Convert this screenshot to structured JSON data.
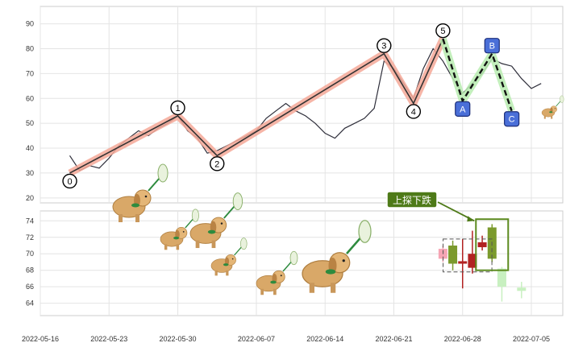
{
  "chart_data": [
    {
      "type": "line",
      "panel": "top",
      "title": "",
      "xlabel": "",
      "ylabel": "",
      "ylim": [
        18,
        97
      ],
      "yticks": [
        20,
        30,
        40,
        50,
        60,
        70,
        80,
        90
      ],
      "grid": true,
      "price_series": {
        "x": [
          "2022-05-19",
          "2022-05-20",
          "2022-05-21",
          "2022-05-22",
          "2022-05-23",
          "2022-05-24",
          "2022-05-25",
          "2022-05-26",
          "2022-05-27",
          "2022-05-28",
          "2022-05-29",
          "2022-05-30",
          "2022-05-31",
          "2022-06-01",
          "2022-06-02",
          "2022-06-03",
          "2022-06-04",
          "2022-06-05",
          "2022-06-06",
          "2022-06-07",
          "2022-06-08",
          "2022-06-09",
          "2022-06-10",
          "2022-06-11",
          "2022-06-12",
          "2022-06-13",
          "2022-06-14",
          "2022-06-15",
          "2022-06-16",
          "2022-06-17",
          "2022-06-18",
          "2022-06-19",
          "2022-06-20",
          "2022-06-21",
          "2022-06-22",
          "2022-06-23",
          "2022-06-24",
          "2022-06-25",
          "2022-06-26",
          "2022-06-27",
          "2022-06-28",
          "2022-06-29",
          "2022-06-30",
          "2022-07-01",
          "2022-07-02",
          "2022-07-03",
          "2022-07-04",
          "2022-07-05",
          "2022-07-06"
        ],
        "values": [
          37,
          31,
          33,
          32,
          36,
          41,
          44,
          47,
          45,
          48,
          50,
          53,
          47,
          44,
          38,
          39,
          41,
          43,
          45,
          47,
          52,
          55,
          58,
          55,
          53,
          50,
          46,
          44,
          48,
          50,
          52,
          56,
          75,
          72,
          66,
          60,
          72,
          80,
          75,
          68,
          62,
          66,
          70,
          76,
          74,
          73,
          68,
          64,
          66
        ]
      },
      "wave_points": [
        {
          "label": "0",
          "x": "2022-05-19",
          "y": 30
        },
        {
          "label": "1",
          "x": "2022-05-30",
          "y": 53
        },
        {
          "label": "2",
          "x": "2022-06-03",
          "y": 37
        },
        {
          "label": "3",
          "x": "2022-06-20",
          "y": 78
        },
        {
          "label": "4",
          "x": "2022-06-23",
          "y": 58
        },
        {
          "label": "5",
          "x": "2022-06-26",
          "y": 84
        },
        {
          "label": "A",
          "x": "2022-06-28",
          "y": 59
        },
        {
          "label": "B",
          "x": "2022-07-01",
          "y": 78
        },
        {
          "label": "C",
          "x": "2022-07-03",
          "y": 55
        }
      ]
    },
    {
      "type": "candlestick",
      "panel": "bottom",
      "ylim": [
        62.5,
        75.2
      ],
      "yticks": [
        64,
        66,
        68,
        70,
        72,
        74
      ],
      "grid": true,
      "candles": [
        {
          "x": "2022-06-26",
          "open": 69.4,
          "close": 70.6,
          "high": 71.0,
          "low": 69.0,
          "color": "#f6a5b4"
        },
        {
          "x": "2022-06-27",
          "open": 68.8,
          "close": 71.0,
          "high": 71.6,
          "low": 68.0,
          "color": "#7b9a2d"
        },
        {
          "x": "2022-06-28",
          "open": 69.1,
          "close": 68.8,
          "high": 71.8,
          "low": 65.8,
          "color": "#b22222"
        },
        {
          "x": "2022-06-29",
          "open": 70.0,
          "close": 68.3,
          "high": 72.8,
          "low": 67.6,
          "color": "#b22222"
        },
        {
          "x": "2022-06-30",
          "open": 71.4,
          "close": 70.8,
          "high": 72.2,
          "low": 70.4,
          "color": "#b22222"
        },
        {
          "x": "2022-07-01",
          "open": 69.4,
          "close": 73.2,
          "high": 73.6,
          "low": 69.0,
          "color": "#7b9a2d"
        },
        {
          "x": "2022-07-02",
          "open": 68.2,
          "close": 66.0,
          "high": 68.4,
          "low": 64.2,
          "color": "#c8f0c0"
        },
        {
          "x": "2022-07-04",
          "open": 65.9,
          "close": 65.5,
          "high": 66.6,
          "low": 64.6,
          "color": "#c8f0c0"
        }
      ],
      "annotation": "上探下跌"
    }
  ],
  "x_axis": {
    "ticks": [
      "2022-05-16",
      "2022-05-23",
      "2022-05-30",
      "2022-06-07",
      "2022-06-14",
      "2022-06-21",
      "2022-06-28",
      "2022-07-05"
    ]
  },
  "colors": {
    "price_line": "#2e2e3a",
    "wave_band": "#f4a898",
    "wave_line": "#333333",
    "abc_line": "#111111",
    "abc_band": "#b8ecb0",
    "abc_box": "#4a6fd8",
    "callout_fill": "#4e7a18",
    "callout_arrow": "#4e7a18",
    "grid": "#e4e4e4"
  }
}
